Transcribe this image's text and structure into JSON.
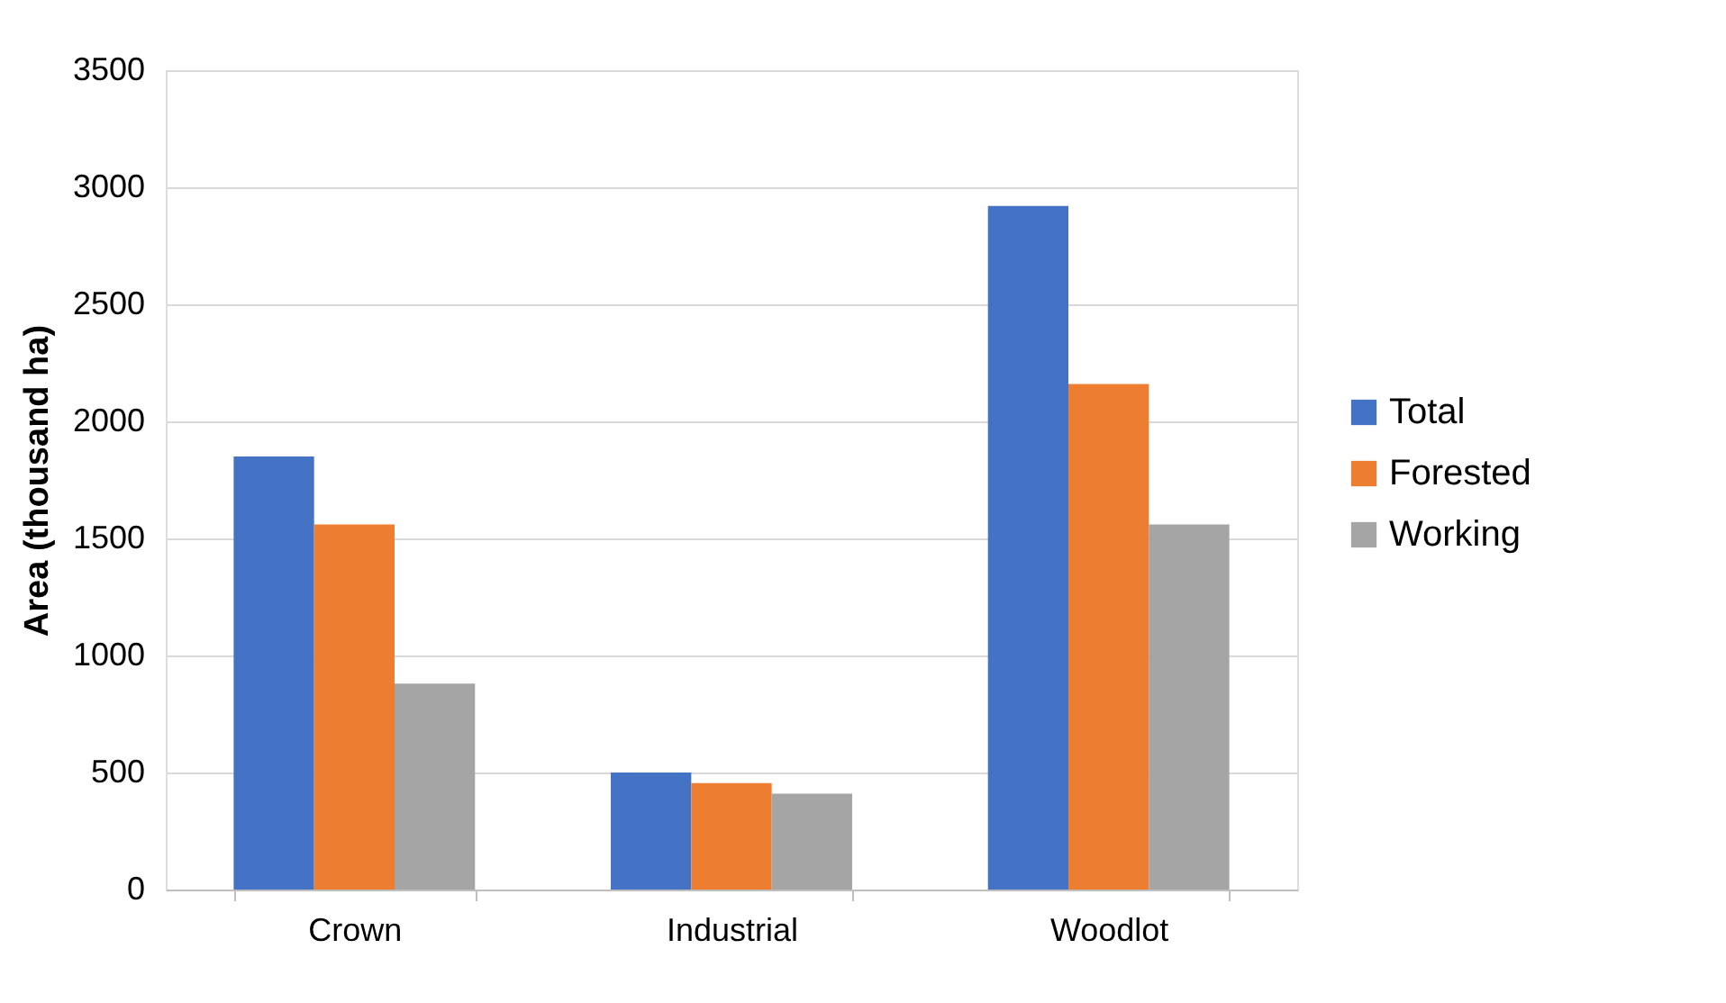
{
  "chart_data": {
    "type": "bar",
    "ylabel": "Area (thousand ha)",
    "categories": [
      "Crown",
      "Industrial",
      "Woodlot"
    ],
    "series": [
      {
        "name": "Total",
        "color": "#4472c4",
        "values": [
          1850,
          500,
          2920
        ]
      },
      {
        "name": "Forested",
        "color": "#ed7d31",
        "values": [
          1560,
          455,
          2160
        ]
      },
      {
        "name": "Working",
        "color": "#a5a5a5",
        "values": [
          880,
          410,
          1560
        ]
      }
    ],
    "ylim": [
      0,
      3500
    ],
    "yticks": [
      0,
      500,
      1000,
      1500,
      2000,
      2500,
      3000,
      3500
    ],
    "grid": "y",
    "legend": "right"
  }
}
